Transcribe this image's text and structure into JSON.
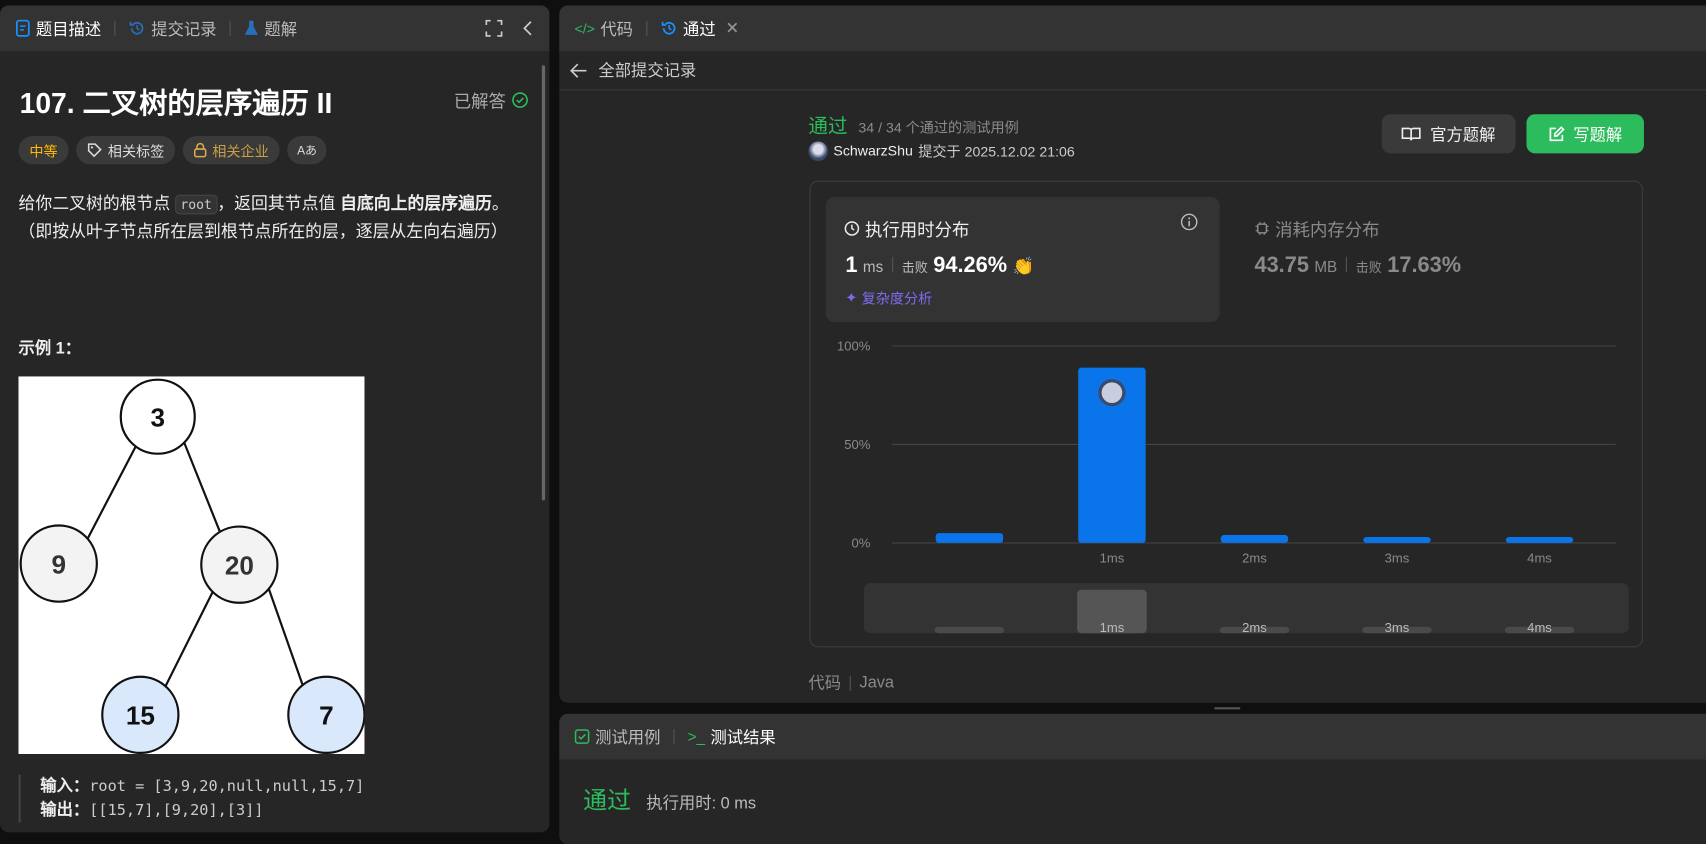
{
  "left": {
    "tabs": [
      {
        "label": "题目描述",
        "icon": "document-icon"
      },
      {
        "label": "提交记录",
        "icon": "history-icon"
      },
      {
        "label": "题解",
        "icon": "flask-icon"
      }
    ],
    "title": "107. 二叉树的层序遍历 II",
    "solved_label": "已解答",
    "tags": {
      "difficulty": "中等",
      "topics": "相关标签",
      "companies": "相关企业",
      "translate": "Aあ"
    },
    "desc": {
      "p1": "给你二叉树的根节点",
      "code": "root",
      "p2": "，返回其节点值",
      "bold": "自底向上的层序遍历",
      "p3": "。 （即按从叶子节点所在层到根节点所在的层，逐层从左向右遍历）"
    },
    "example_title": "示例 1：",
    "tree": {
      "nodes": [
        "3",
        "9",
        "20",
        "15",
        "7"
      ]
    },
    "example": {
      "input_label": "输入：",
      "input": "root = [3,9,20,null,null,15,7]",
      "output_label": "输出：",
      "output": "[[15,7],[9,20],[3]]"
    }
  },
  "right": {
    "tabs": [
      {
        "label": "代码",
        "icon": "code-icon"
      },
      {
        "label": "通过",
        "icon": "history-icon"
      }
    ],
    "back_label": "全部提交记录",
    "status": "通过",
    "tests": "34 / 34 个通过的测试用例",
    "user": "SchwarzShu",
    "submitted": "提交于 2025.12.02 21:06",
    "official_btn": "官方题解",
    "write_btn": "写题解",
    "runtime": {
      "title": "执行用时分布",
      "value": "1",
      "unit": "ms",
      "beat_label": "击败",
      "beat": "94.26%",
      "analysis": "复杂度分析"
    },
    "memory": {
      "title": "消耗内存分布",
      "value": "43.75",
      "unit": "MB",
      "beat_label": "击败",
      "beat": "17.63%"
    },
    "code_label": "代码",
    "lang": "Java"
  },
  "chart_data": {
    "type": "bar",
    "categories": [
      "",
      "1ms",
      "2ms",
      "3ms",
      "4ms"
    ],
    "values": [
      5,
      89,
      4,
      3,
      3
    ],
    "yticks": [
      "100%",
      "50%",
      "0%"
    ],
    "ylim": [
      0,
      100
    ],
    "highlight": "1ms",
    "bar_color": "#0a74ea",
    "grid": true
  },
  "bottom": {
    "tabs": [
      {
        "label": "测试用例"
      },
      {
        "label": "测试结果"
      }
    ],
    "status": "通过",
    "runtime": "执行用时: 0 ms"
  },
  "colors": {
    "accent_green": "#2cbb5d",
    "accent_blue": "#0a74ea",
    "medium": "#ffb800"
  }
}
